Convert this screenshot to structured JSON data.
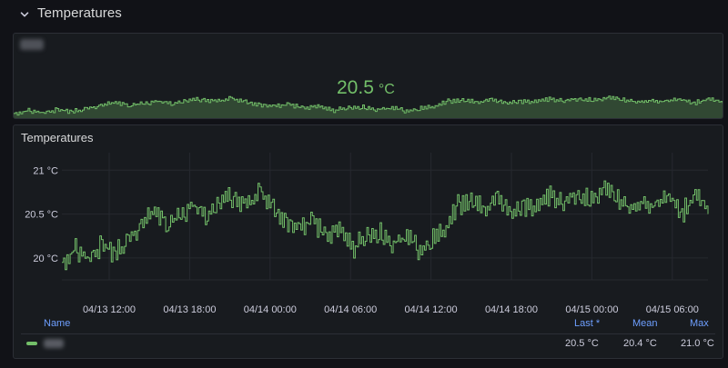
{
  "row": {
    "title": "Temperatures",
    "collapse_icon": "chevron-down-icon"
  },
  "stat_panel": {
    "value": "20.5",
    "unit": "°C",
    "color": "#73bf69"
  },
  "timeseries_panel": {
    "title": "Temperatures",
    "legend": {
      "headers": {
        "name": "Name",
        "last": "Last *",
        "mean": "Mean",
        "max": "Max"
      },
      "rows": [
        {
          "color": "#73bf69",
          "last": "20.5 °C",
          "mean": "20.4 °C",
          "max": "21.0 °C"
        }
      ]
    }
  },
  "chart_data": {
    "type": "line",
    "title": "Temperatures",
    "y_ticks": [
      "20 °C",
      "20.5 °C",
      "21 °C"
    ],
    "x_ticks": [
      "04/13 12:00",
      "04/13 18:00",
      "04/14 00:00",
      "04/14 06:00",
      "04/14 12:00",
      "04/14 18:00",
      "04/15 00:00",
      "04/15 06:00"
    ],
    "ylim": [
      19.75,
      21.2
    ],
    "grid": true,
    "legend_position": "bottom",
    "series": [
      {
        "color": "#73bf69",
        "x": [
          "04/13 07:00",
          "04/13 08:00",
          "04/13 09:00",
          "04/13 10:00",
          "04/13 11:00",
          "04/13 12:00",
          "04/13 13:00",
          "04/13 14:00",
          "04/13 15:00",
          "04/13 16:00",
          "04/13 17:00",
          "04/13 18:00",
          "04/13 19:00",
          "04/13 20:00",
          "04/13 21:00",
          "04/13 22:00",
          "04/13 23:00",
          "04/14 00:00",
          "04/14 01:00",
          "04/14 02:00",
          "04/14 03:00",
          "04/14 04:00",
          "04/14 05:00",
          "04/14 06:00",
          "04/14 07:00",
          "04/14 08:00",
          "04/14 09:00",
          "04/14 10:00",
          "04/14 11:00",
          "04/14 12:00",
          "04/14 13:00",
          "04/14 14:00",
          "04/14 15:00",
          "04/14 16:00",
          "04/14 17:00",
          "04/14 18:00",
          "04/14 19:00",
          "04/14 20:00",
          "04/14 21:00",
          "04/14 22:00",
          "04/14 23:00",
          "04/15 00:00",
          "04/15 01:00",
          "04/15 02:00",
          "04/15 03:00",
          "04/15 04:00",
          "04/15 05:00",
          "04/15 06:00",
          "04/15 07:00",
          "04/15 08:00"
        ],
        "values": [
          19.95,
          20.1,
          20.0,
          20.15,
          20.05,
          20.2,
          20.35,
          20.55,
          20.4,
          20.5,
          20.6,
          20.45,
          20.65,
          20.7,
          20.6,
          20.75,
          20.55,
          20.4,
          20.3,
          20.45,
          20.2,
          20.35,
          20.1,
          20.25,
          20.3,
          20.15,
          20.25,
          20.1,
          20.2,
          20.3,
          20.6,
          20.65,
          20.55,
          20.7,
          20.5,
          20.6,
          20.55,
          20.7,
          20.6,
          20.75,
          20.65,
          20.8,
          20.7,
          20.6,
          20.65,
          20.55,
          20.7,
          20.5,
          20.75,
          20.5
        ]
      }
    ]
  }
}
